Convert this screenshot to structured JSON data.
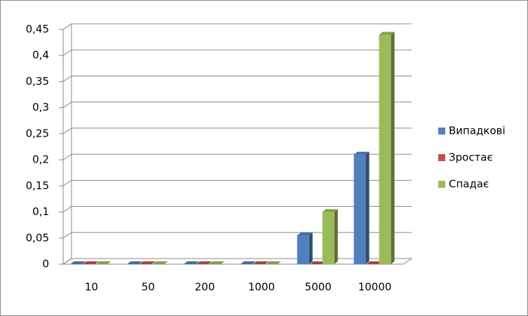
{
  "chart_data": {
    "type": "bar3d",
    "categories": [
      "10",
      "50",
      "200",
      "1000",
      "5000",
      "10000"
    ],
    "series": [
      {
        "name": "Випадкові",
        "color": "#4f81bd",
        "values": [
          0,
          0,
          0,
          0,
          0.055,
          0.21
        ]
      },
      {
        "name": "Зростає",
        "color": "#c0504d",
        "values": [
          0,
          0,
          0,
          0,
          0,
          0
        ]
      },
      {
        "name": "Спадає",
        "color": "#9bbb59",
        "values": [
          0,
          0,
          0,
          0,
          0.1,
          0.44
        ]
      }
    ],
    "ylim": [
      0,
      0.45
    ],
    "yticks": [
      0,
      {
        "value": 0.05,
        "label": "0,05"
      },
      {
        "value": 0.1,
        "label": "0,1"
      },
      {
        "value": 0.15,
        "label": "0,15"
      },
      {
        "value": 0.2,
        "label": "0,2"
      },
      {
        "value": 0.25,
        "label": "0,25"
      },
      {
        "value": 0.3,
        "label": "0,3"
      },
      {
        "value": 0.35,
        "label": "0,35"
      },
      {
        "value": 0.4,
        "label": "0,4"
      },
      {
        "value": 0.45,
        "label": "0,45"
      }
    ],
    "grid": true,
    "legend": "right"
  }
}
